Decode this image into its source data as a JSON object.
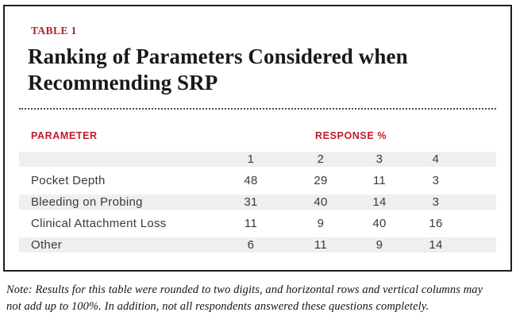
{
  "table_label": "TABLE 1",
  "title": {
    "line1": "Ranking of Parameters Considered when",
    "line2": "Recommending SRP"
  },
  "columns": {
    "parameter": "PARAMETER",
    "response": "RESPONSE %"
  },
  "rank_header": [
    "1",
    "2",
    "3",
    "4"
  ],
  "rows": [
    {
      "parameter": "Pocket Depth",
      "values": [
        "48",
        "29",
        "11",
        "3"
      ]
    },
    {
      "parameter": "Bleeding on Probing",
      "values": [
        "31",
        "40",
        "14",
        "3"
      ]
    },
    {
      "parameter": "Clinical Attachment Loss",
      "values": [
        "11",
        "9",
        "40",
        "16"
      ]
    },
    {
      "parameter": "Other",
      "values": [
        "6",
        "11",
        "9",
        "14"
      ]
    }
  ],
  "note": {
    "line1": "Note: Results for this table were rounded to two digits, and horizontal rows and vertical columns may",
    "line2": "not add up to 100%. In addition, not all respondents answered these questions completely."
  },
  "colors": {
    "accent_red": "#c11a2e",
    "label_red": "#b5202c",
    "stripe_gray": "#efefef",
    "border_dark": "#1c1c1c",
    "body_text": "#3a3a3b"
  },
  "chart_data": {
    "type": "table",
    "title": "Ranking of Parameters Considered when Recommending SRP",
    "columns": [
      "PARAMETER",
      "1",
      "2",
      "3",
      "4"
    ],
    "rows": [
      [
        "Pocket Depth",
        48,
        29,
        11,
        3
      ],
      [
        "Bleeding on Probing",
        31,
        40,
        14,
        3
      ],
      [
        "Clinical Attachment Loss",
        11,
        9,
        40,
        16
      ],
      [
        "Other",
        6,
        11,
        9,
        14
      ]
    ],
    "units": "Response %",
    "note": "Note: Results for this table were rounded to two digits, and horizontal rows and vertical columns may not add up to 100%. In addition, not all respondents answered these questions completely."
  }
}
